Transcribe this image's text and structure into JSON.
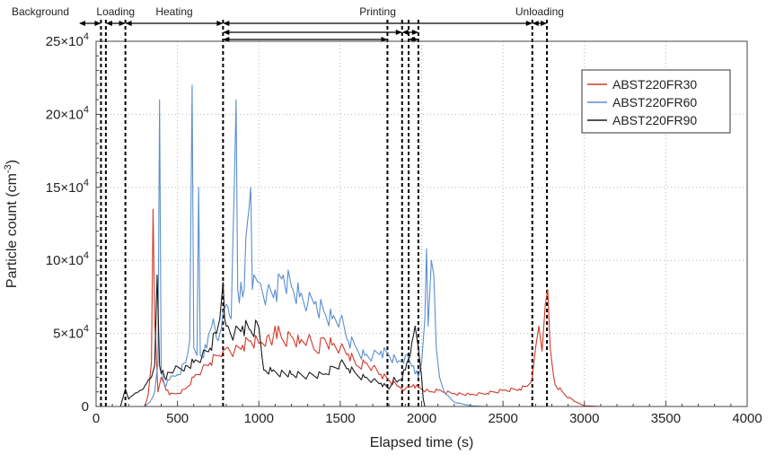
{
  "chart_data": {
    "type": "line",
    "title": "",
    "xlabel": "Elapsed time (s)",
    "ylabel_main": "Particle count (cm",
    "ylabel_exp": "-3",
    "ylabel_close": ")",
    "xlim": [
      0,
      4000
    ],
    "ylim": [
      0,
      250000
    ],
    "x_ticks": [
      0,
      500,
      1000,
      1500,
      2000,
      2500,
      3000,
      3500,
      4000
    ],
    "x_tick_labels": [
      "0",
      "500",
      "1000",
      "1500",
      "2000",
      "2500",
      "3000",
      "3500",
      "4000"
    ],
    "y_ticks": [
      0,
      50000,
      100000,
      150000,
      200000,
      250000
    ],
    "y_tick_labels": [
      {
        "base": "0",
        "exp": ""
      },
      {
        "base": "5×10",
        "exp": "4"
      },
      {
        "base": "10×10",
        "exp": "4"
      },
      {
        "base": "15×10",
        "exp": "4"
      },
      {
        "base": "20×10",
        "exp": "4"
      },
      {
        "base": "25×10",
        "exp": "4"
      }
    ],
    "grid": true,
    "legend_position": "top-right",
    "phases": [
      {
        "label": "Background",
        "from": 0,
        "to": 30
      },
      {
        "label": "Loading",
        "from": 60,
        "to": 180
      },
      {
        "label": "Heating",
        "from": 180,
        "to": 780
      },
      {
        "label": "Printing",
        "from": 780,
        "to": 2680
      },
      {
        "label": "Unloading",
        "from": 2680,
        "to": 2770
      }
    ],
    "phase_lines": [
      30,
      60,
      180,
      780,
      1790,
      1880,
      1920,
      1980,
      2680,
      2770
    ],
    "phase_sub_arrows": [
      {
        "from": 780,
        "to": 1880,
        "row": 1
      },
      {
        "from": 780,
        "to": 1790,
        "row": 2
      },
      {
        "from": 1880,
        "to": 1980,
        "row": 1
      },
      {
        "from": 1920,
        "to": 1980,
        "row": 2
      }
    ],
    "series": [
      {
        "name": "ABST220FR30",
        "color": "#d23a2a",
        "points": [
          [
            0,
            0
          ],
          [
            300,
            0
          ],
          [
            320,
            8000
          ],
          [
            340,
            30000
          ],
          [
            350,
            135000
          ],
          [
            360,
            60000
          ],
          [
            380,
            10000
          ],
          [
            400,
            20000
          ],
          [
            420,
            15000
          ],
          [
            450,
            8000
          ],
          [
            500,
            9000
          ],
          [
            550,
            12000
          ],
          [
            600,
            20000
          ],
          [
            650,
            25000
          ],
          [
            700,
            30000
          ],
          [
            750,
            35000
          ],
          [
            780,
            38000
          ],
          [
            800,
            40000
          ],
          [
            850,
            38000
          ],
          [
            900,
            42000
          ],
          [
            950,
            45000
          ],
          [
            1000,
            43000
          ],
          [
            1050,
            48000
          ],
          [
            1080,
            42000
          ],
          [
            1100,
            55000
          ],
          [
            1150,
            45000
          ],
          [
            1200,
            48000
          ],
          [
            1250,
            43000
          ],
          [
            1300,
            46000
          ],
          [
            1350,
            38000
          ],
          [
            1400,
            47000
          ],
          [
            1450,
            42000
          ],
          [
            1500,
            40000
          ],
          [
            1550,
            36000
          ],
          [
            1600,
            28000
          ],
          [
            1650,
            30000
          ],
          [
            1700,
            27000
          ],
          [
            1750,
            22000
          ],
          [
            1800,
            18000
          ],
          [
            1850,
            14000
          ],
          [
            1900,
            12000
          ],
          [
            1950,
            15000
          ],
          [
            2000,
            12000
          ],
          [
            2050,
            10000
          ],
          [
            2100,
            11000
          ],
          [
            2200,
            9000
          ],
          [
            2300,
            8000
          ],
          [
            2400,
            9000
          ],
          [
            2500,
            11000
          ],
          [
            2600,
            12000
          ],
          [
            2650,
            14000
          ],
          [
            2680,
            20000
          ],
          [
            2700,
            40000
          ],
          [
            2720,
            55000
          ],
          [
            2740,
            38000
          ],
          [
            2760,
            70000
          ],
          [
            2775,
            80000
          ],
          [
            2790,
            40000
          ],
          [
            2820,
            15000
          ],
          [
            2880,
            8000
          ],
          [
            2950,
            3000
          ],
          [
            3000,
            500
          ],
          [
            3100,
            0
          ],
          [
            4000,
            0
          ]
        ]
      },
      {
        "name": "ABST220FR60",
        "color": "#5b8fce",
        "points": [
          [
            0,
            0
          ],
          [
            300,
            0
          ],
          [
            330,
            3000
          ],
          [
            360,
            10000
          ],
          [
            380,
            30000
          ],
          [
            390,
            210000
          ],
          [
            400,
            25000
          ],
          [
            420,
            15000
          ],
          [
            450,
            18000
          ],
          [
            500,
            22000
          ],
          [
            550,
            30000
          ],
          [
            575,
            45000
          ],
          [
            590,
            220000
          ],
          [
            600,
            40000
          ],
          [
            620,
            35000
          ],
          [
            630,
            150000
          ],
          [
            640,
            35000
          ],
          [
            680,
            40000
          ],
          [
            720,
            60000
          ],
          [
            750,
            45000
          ],
          [
            780,
            65000
          ],
          [
            800,
            70000
          ],
          [
            830,
            60000
          ],
          [
            860,
            210000
          ],
          [
            870,
            80000
          ],
          [
            900,
            75000
          ],
          [
            950,
            150000
          ],
          [
            960,
            80000
          ],
          [
            1000,
            85000
          ],
          [
            1050,
            78000
          ],
          [
            1100,
            80000
          ],
          [
            1150,
            90000
          ],
          [
            1200,
            82000
          ],
          [
            1250,
            75000
          ],
          [
            1300,
            70000
          ],
          [
            1350,
            72000
          ],
          [
            1400,
            65000
          ],
          [
            1450,
            60000
          ],
          [
            1500,
            60000
          ],
          [
            1550,
            45000
          ],
          [
            1600,
            40000
          ],
          [
            1650,
            35000
          ],
          [
            1700,
            35000
          ],
          [
            1750,
            38000
          ],
          [
            1800,
            35000
          ],
          [
            1850,
            30000
          ],
          [
            1900,
            35000
          ],
          [
            1950,
            28000
          ],
          [
            1980,
            20000
          ],
          [
            2000,
            30000
          ],
          [
            2020,
            60000
          ],
          [
            2030,
            108000
          ],
          [
            2040,
            55000
          ],
          [
            2060,
            100000
          ],
          [
            2075,
            90000
          ],
          [
            2090,
            40000
          ],
          [
            2110,
            20000
          ],
          [
            2150,
            8000
          ],
          [
            2200,
            3000
          ],
          [
            2300,
            500
          ],
          [
            2400,
            0
          ],
          [
            4000,
            0
          ]
        ]
      },
      {
        "name": "ABST220FR90",
        "color": "#1a1a1a",
        "points": [
          [
            0,
            0
          ],
          [
            150,
            0
          ],
          [
            180,
            12000
          ],
          [
            200,
            5000
          ],
          [
            230,
            8000
          ],
          [
            260,
            10000
          ],
          [
            290,
            12000
          ],
          [
            320,
            18000
          ],
          [
            340,
            20000
          ],
          [
            360,
            28000
          ],
          [
            375,
            90000
          ],
          [
            390,
            28000
          ],
          [
            420,
            20000
          ],
          [
            480,
            25000
          ],
          [
            550,
            28000
          ],
          [
            600,
            30000
          ],
          [
            650,
            34000
          ],
          [
            700,
            40000
          ],
          [
            740,
            50000
          ],
          [
            760,
            60000
          ],
          [
            780,
            85000
          ],
          [
            790,
            60000
          ],
          [
            800,
            55000
          ],
          [
            850,
            50000
          ],
          [
            900,
            55000
          ],
          [
            950,
            52000
          ],
          [
            1000,
            54000
          ],
          [
            1030,
            25000
          ],
          [
            1080,
            24000
          ],
          [
            1200,
            22000
          ],
          [
            1300,
            21000
          ],
          [
            1400,
            22000
          ],
          [
            1500,
            30000
          ],
          [
            1550,
            26000
          ],
          [
            1600,
            22000
          ],
          [
            1650,
            20000
          ],
          [
            1700,
            18000
          ],
          [
            1750,
            16000
          ],
          [
            1800,
            12000
          ],
          [
            1830,
            20000
          ],
          [
            1860,
            18000
          ],
          [
            1900,
            25000
          ],
          [
            1930,
            35000
          ],
          [
            1960,
            55000
          ],
          [
            1980,
            40000
          ],
          [
            2000,
            20000
          ],
          [
            2010,
            5000
          ],
          [
            2020,
            0
          ],
          [
            4000,
            0
          ]
        ]
      }
    ]
  }
}
